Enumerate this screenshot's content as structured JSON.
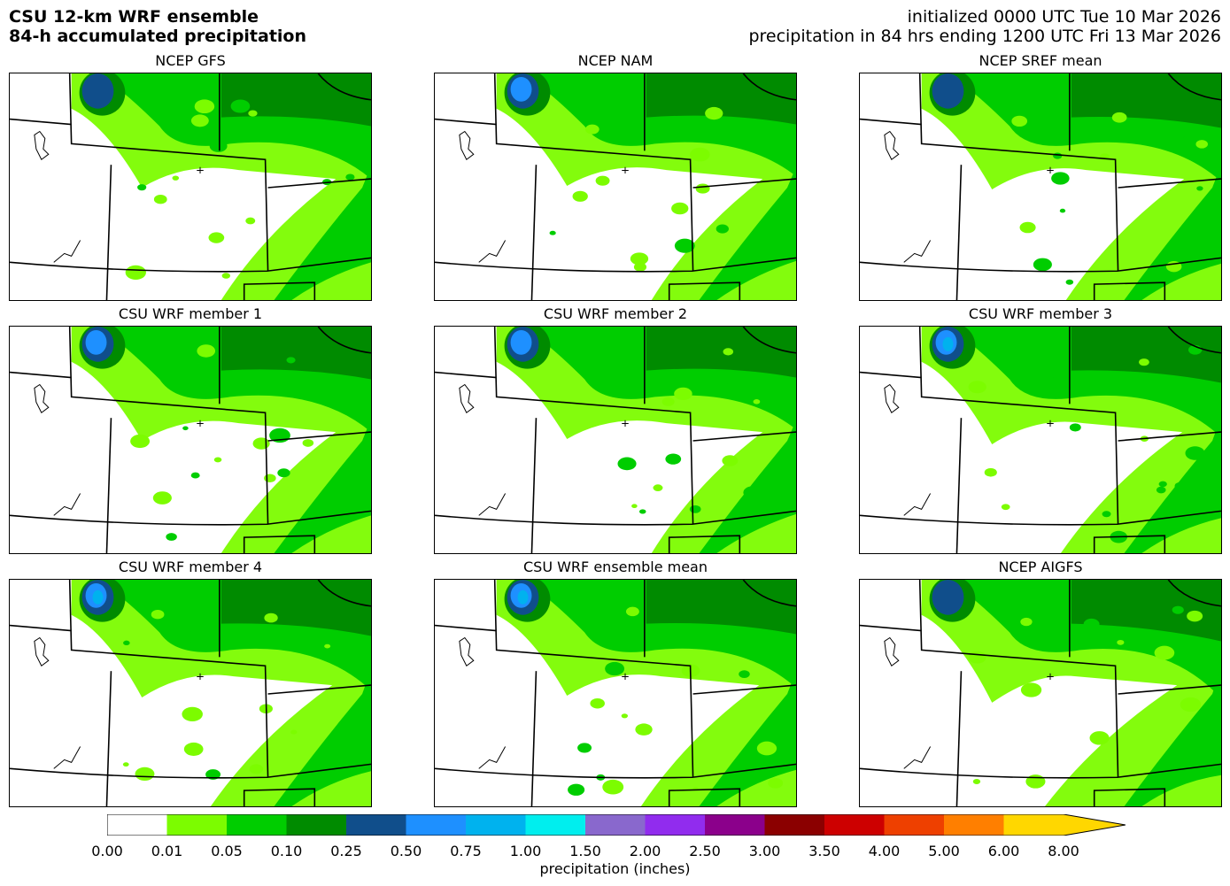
{
  "header": {
    "left_line1": "CSU 12-km WRF ensemble",
    "left_line2": "84-h accumulated precipitation",
    "right_line1": "initialized 0000 UTC Tue 10 Mar 2026",
    "right_line2": "precipitation in 84 hrs ending 1200 UTC Fri 13 Mar 2026"
  },
  "panels": [
    {
      "title": "NCEP GFS",
      "wet": 0.5,
      "max_level": 4
    },
    {
      "title": "NCEP NAM",
      "wet": 0.45,
      "max_level": 5
    },
    {
      "title": "NCEP SREF mean",
      "wet": 0.55,
      "max_level": 4
    },
    {
      "title": "CSU WRF member 1",
      "wet": 0.5,
      "max_level": 5
    },
    {
      "title": "CSU WRF member 2",
      "wet": 0.45,
      "max_level": 5
    },
    {
      "title": "CSU WRF member 3",
      "wet": 0.6,
      "max_level": 6
    },
    {
      "title": "CSU WRF member 4",
      "wet": 0.6,
      "max_level": 6
    },
    {
      "title": "CSU WRF ensemble mean",
      "wet": 0.55,
      "max_level": 6
    },
    {
      "title": "NCEP AIGFS",
      "wet": 0.75,
      "max_level": 4
    }
  ],
  "colorbar": {
    "ticks": [
      "0.00",
      "0.01",
      "0.05",
      "0.10",
      "0.25",
      "0.50",
      "0.75",
      "1.00",
      "1.50",
      "2.00",
      "2.50",
      "3.00",
      "3.50",
      "4.00",
      "5.00",
      "6.00",
      "8.00"
    ],
    "colors": [
      "#ffffff",
      "#7cfc00",
      "#00cd00",
      "#008b00",
      "#104e8b",
      "#1e90ff",
      "#00b2ee",
      "#00eeee",
      "#8968cd",
      "#912cee",
      "#8b008b",
      "#8b0000",
      "#cd0000",
      "#ee4000",
      "#ff7f00",
      "#ffd700"
    ],
    "label": "precipitation (inches)"
  }
}
